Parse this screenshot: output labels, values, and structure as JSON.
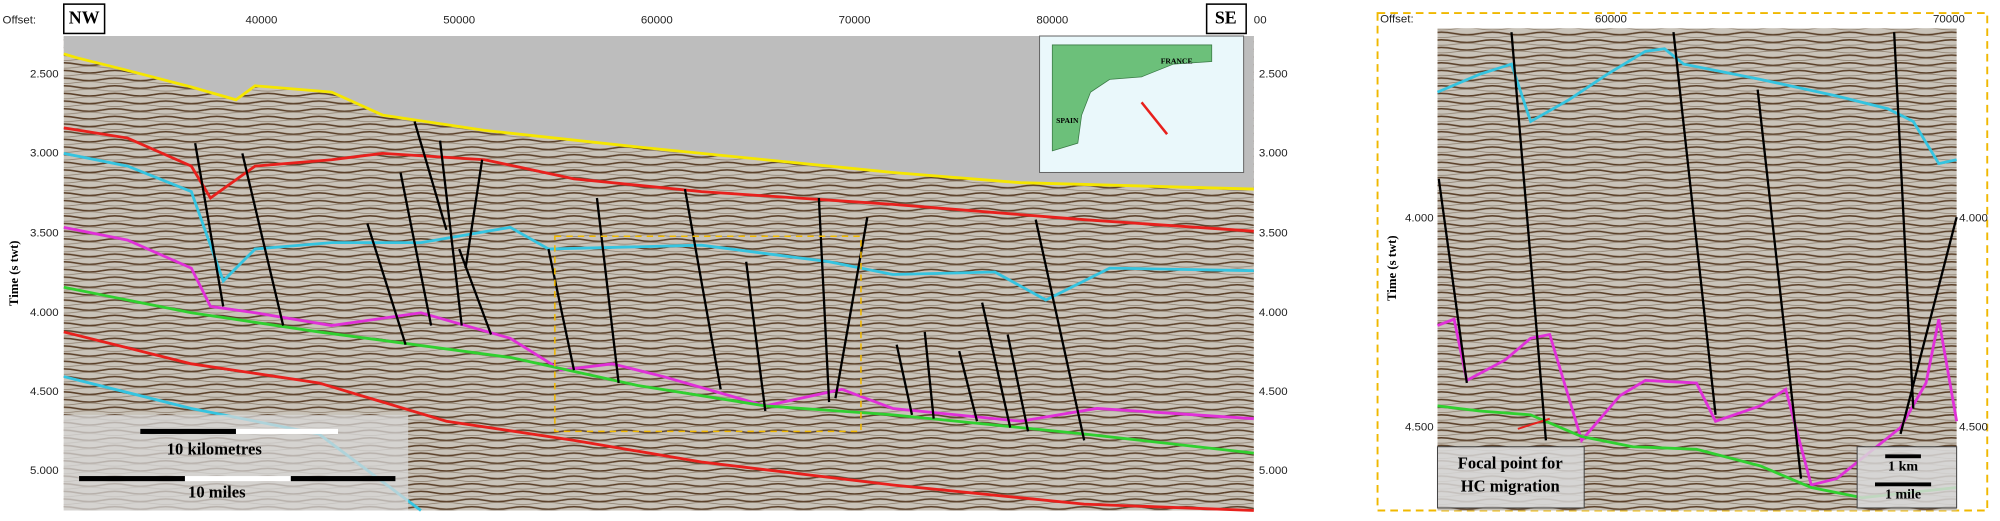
{
  "left_panel": {
    "offset_label": "Offset:",
    "nw": "NW",
    "se": "SE",
    "x_ticks": [
      "40000",
      "50000",
      "60000",
      "70000",
      "80000",
      "00"
    ],
    "y_ticks": [
      "2.500",
      "3.000",
      "3.500",
      "4.000",
      "4.500",
      "5.000"
    ],
    "y_ticks_right": [
      "2.500",
      "3.000",
      "3.500",
      "4.000",
      "4.500",
      "5.000"
    ],
    "y_axis_label": "Time (s twt)",
    "scale_bar": {
      "km": "10 kilometres",
      "miles": "10 miles"
    },
    "inset_map": {
      "france": "FRANCE",
      "spain": "SPAIN"
    }
  },
  "right_panel": {
    "offset_label": "Offset:",
    "x_ticks": [
      "60000",
      "70000"
    ],
    "y_ticks": [
      "4.000",
      "4.500"
    ],
    "y_ticks_right": [
      "4.000",
      "4.500"
    ],
    "y_axis_label": "Time (s twt)",
    "callout": [
      "Focal point for",
      "HC migration"
    ],
    "scale_bar": {
      "km": "1 km",
      "miles": "1 mile"
    }
  }
}
